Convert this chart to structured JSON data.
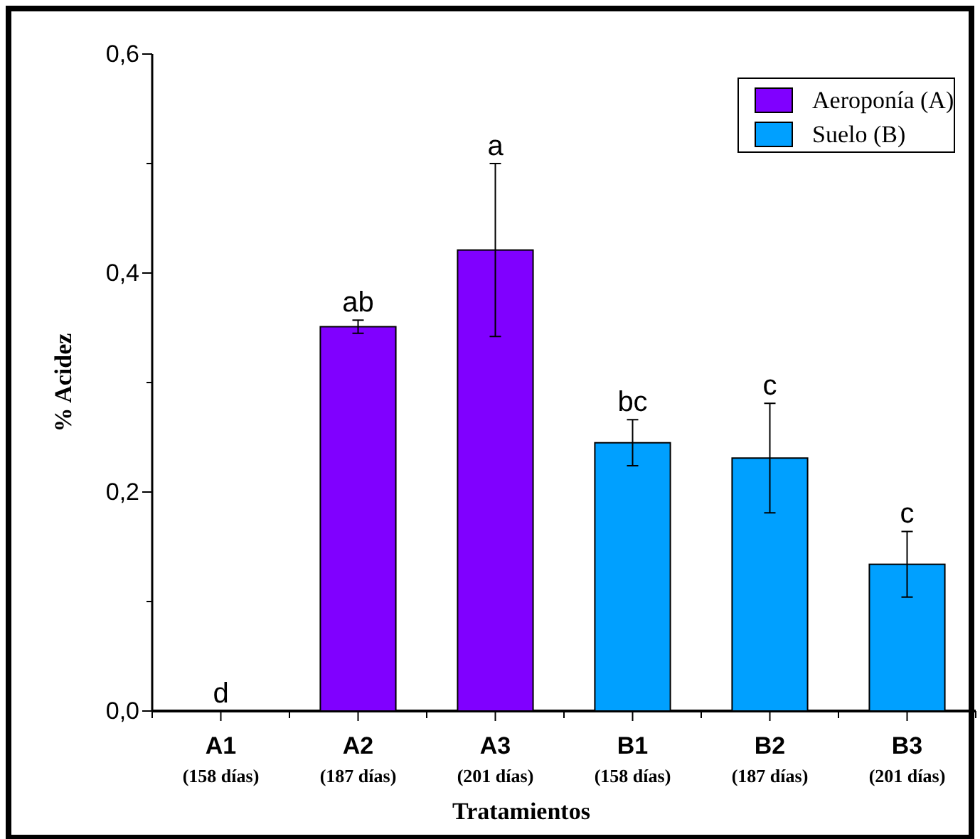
{
  "chart_data": {
    "type": "bar",
    "xlabel": "Tratamientos",
    "ylabel": "% Acidez",
    "categories": [
      "A1\n(158 días)",
      "A2\n(187 días)",
      "A3\n(201 días)",
      "B1\n(158 días)",
      "B2\n(187 días)",
      "B3\n(201 días)"
    ],
    "series": [
      {
        "name": "Aeroponía (A)",
        "color": "#8000ff",
        "values": [
          0,
          0.351,
          0.421,
          null,
          null,
          null
        ],
        "errors": [
          null,
          0.006,
          0.079,
          null,
          null,
          null
        ]
      },
      {
        "name": "Suelo (B)",
        "color": "#00a0ff",
        "values": [
          null,
          null,
          null,
          0.245,
          0.231,
          0.134
        ],
        "errors": [
          null,
          null,
          null,
          0.021,
          0.05,
          0.03
        ]
      }
    ],
    "ylim": [
      0,
      0.6
    ],
    "yticks": [
      {
        "value": 0,
        "label": "0,0"
      },
      {
        "value": 0.1,
        "label": null
      },
      {
        "value": 0.2,
        "label": "0,2"
      },
      {
        "value": 0.3,
        "label": null
      },
      {
        "value": 0.4,
        "label": "0,4"
      },
      {
        "value": 0.5,
        "label": null
      },
      {
        "value": 0.6,
        "label": "0,6"
      }
    ],
    "annotations": [
      {
        "text": "d",
        "x": "A1\n(158 días)",
        "y": 0
      },
      {
        "text": "ab",
        "x": "A2\n(187 días)",
        "y": 0.357
      },
      {
        "text": "a",
        "x": "A3\n(201 días)",
        "y": 0.5
      },
      {
        "text": "bc",
        "x": "B1\n(158 días)",
        "y": 0.266
      },
      {
        "text": "c",
        "x": "B2\n(187 días)",
        "y": 0.281
      },
      {
        "text": "c",
        "x": "B3\n(201 días)",
        "y": 0.164
      }
    ],
    "legend": "top right",
    "grid": false
  }
}
